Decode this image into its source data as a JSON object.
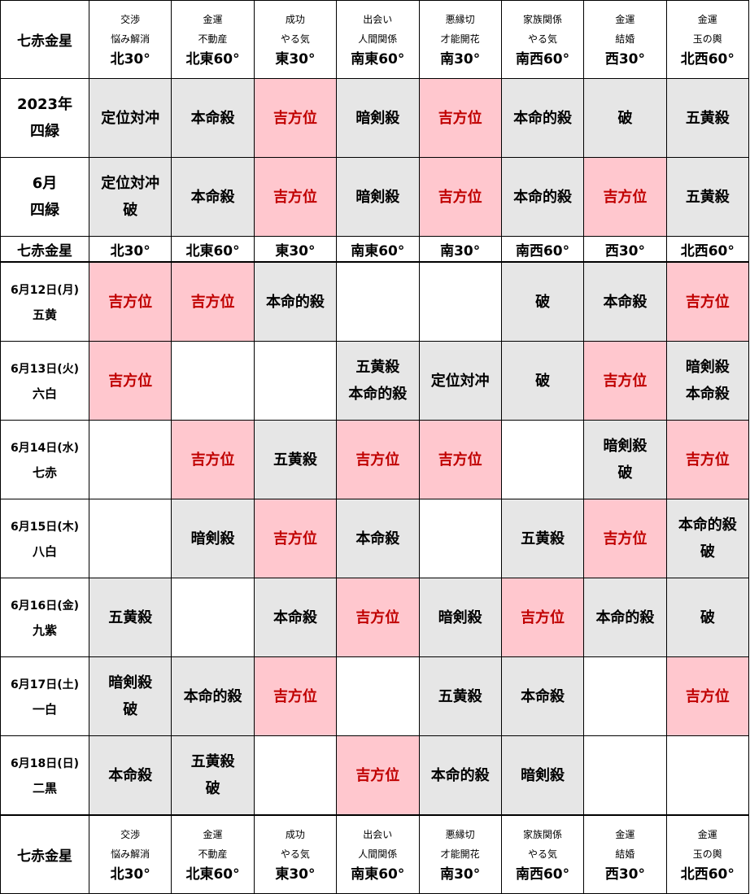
{
  "star_label": "七赤金星",
  "colors": {
    "gray": "#e6e6e6",
    "pink": "#ffc7ce",
    "lucky_text": "#c00000"
  },
  "directions": [
    {
      "lines": [
        "交渉",
        "悩み解消"
      ],
      "dir": "北30°"
    },
    {
      "lines": [
        "金運",
        "不動産"
      ],
      "dir": "北東60°"
    },
    {
      "lines": [
        "成功",
        "やる気"
      ],
      "dir": "東30°"
    },
    {
      "lines": [
        "出会い",
        "人間関係"
      ],
      "dir": "南東60°"
    },
    {
      "lines": [
        "悪縁切",
        "才能開花"
      ],
      "dir": "南30°"
    },
    {
      "lines": [
        "家族関係",
        "やる気"
      ],
      "dir": "南西60°"
    },
    {
      "lines": [
        "金運",
        "結婚"
      ],
      "dir": "西30°"
    },
    {
      "lines": [
        "金運",
        "玉の輿"
      ],
      "dir": "北西60°"
    }
  ],
  "period_rows": [
    {
      "label": [
        "2023年",
        "四緑"
      ],
      "cells": [
        {
          "bg": "gray",
          "text": [
            "定位対冲"
          ]
        },
        {
          "bg": "gray",
          "text": [
            "本命殺"
          ]
        },
        {
          "bg": "pink",
          "text": [
            "吉方位"
          ]
        },
        {
          "bg": "gray",
          "text": [
            "暗剣殺"
          ]
        },
        {
          "bg": "pink",
          "text": [
            "吉方位"
          ]
        },
        {
          "bg": "gray",
          "text": [
            "本命的殺"
          ]
        },
        {
          "bg": "gray",
          "text": [
            "破"
          ]
        },
        {
          "bg": "gray",
          "text": [
            "五黄殺"
          ]
        }
      ]
    },
    {
      "label": [
        "6月",
        "四緑"
      ],
      "cells": [
        {
          "bg": "gray",
          "text": [
            "定位対冲",
            "破"
          ]
        },
        {
          "bg": "gray",
          "text": [
            "本命殺"
          ]
        },
        {
          "bg": "pink",
          "text": [
            "吉方位"
          ]
        },
        {
          "bg": "gray",
          "text": [
            "暗剣殺"
          ]
        },
        {
          "bg": "pink",
          "text": [
            "吉方位"
          ]
        },
        {
          "bg": "gray",
          "text": [
            "本命的殺"
          ]
        },
        {
          "bg": "pink",
          "text": [
            "吉方位"
          ]
        },
        {
          "bg": "gray",
          "text": [
            "五黄殺"
          ]
        }
      ]
    }
  ],
  "day_rows": [
    {
      "date": "6月12日(月)",
      "star": "五黄",
      "cells": [
        {
          "bg": "pink",
          "text": [
            "吉方位"
          ]
        },
        {
          "bg": "pink",
          "text": [
            "吉方位"
          ]
        },
        {
          "bg": "gray",
          "text": [
            "本命的殺"
          ]
        },
        {
          "bg": "white",
          "text": []
        },
        {
          "bg": "white",
          "text": []
        },
        {
          "bg": "gray",
          "text": [
            "破"
          ]
        },
        {
          "bg": "gray",
          "text": [
            "本命殺"
          ]
        },
        {
          "bg": "pink",
          "text": [
            "吉方位"
          ]
        }
      ]
    },
    {
      "date": "6月13日(火)",
      "star": "六白",
      "cells": [
        {
          "bg": "pink",
          "text": [
            "吉方位"
          ]
        },
        {
          "bg": "white",
          "text": []
        },
        {
          "bg": "white",
          "text": []
        },
        {
          "bg": "gray",
          "text": [
            "五黄殺",
            "本命的殺"
          ]
        },
        {
          "bg": "gray",
          "text": [
            "定位対冲"
          ]
        },
        {
          "bg": "gray",
          "text": [
            "破"
          ]
        },
        {
          "bg": "pink",
          "text": [
            "吉方位"
          ]
        },
        {
          "bg": "gray",
          "text": [
            "暗剣殺",
            "本命殺"
          ]
        }
      ]
    },
    {
      "date": "6月14日(水)",
      "star": "七赤",
      "cells": [
        {
          "bg": "white",
          "text": []
        },
        {
          "bg": "pink",
          "text": [
            "吉方位"
          ]
        },
        {
          "bg": "gray",
          "text": [
            "五黄殺"
          ]
        },
        {
          "bg": "pink",
          "text": [
            "吉方位"
          ]
        },
        {
          "bg": "pink",
          "text": [
            "吉方位"
          ]
        },
        {
          "bg": "white",
          "text": []
        },
        {
          "bg": "gray",
          "text": [
            "暗剣殺",
            "破"
          ]
        },
        {
          "bg": "pink",
          "text": [
            "吉方位"
          ]
        }
      ]
    },
    {
      "date": "6月15日(木)",
      "star": "八白",
      "cells": [
        {
          "bg": "white",
          "text": []
        },
        {
          "bg": "gray",
          "text": [
            "暗剣殺"
          ]
        },
        {
          "bg": "pink",
          "text": [
            "吉方位"
          ]
        },
        {
          "bg": "gray",
          "text": [
            "本命殺"
          ]
        },
        {
          "bg": "white",
          "text": []
        },
        {
          "bg": "gray",
          "text": [
            "五黄殺"
          ]
        },
        {
          "bg": "pink",
          "text": [
            "吉方位"
          ]
        },
        {
          "bg": "gray",
          "text": [
            "本命的殺",
            "破"
          ]
        }
      ]
    },
    {
      "date": "6月16日(金)",
      "star": "九紫",
      "cells": [
        {
          "bg": "gray",
          "text": [
            "五黄殺"
          ]
        },
        {
          "bg": "white",
          "text": []
        },
        {
          "bg": "gray",
          "text": [
            "本命殺"
          ]
        },
        {
          "bg": "pink",
          "text": [
            "吉方位"
          ]
        },
        {
          "bg": "gray",
          "text": [
            "暗剣殺"
          ]
        },
        {
          "bg": "pink",
          "text": [
            "吉方位"
          ]
        },
        {
          "bg": "gray",
          "text": [
            "本命的殺"
          ]
        },
        {
          "bg": "gray",
          "text": [
            "破"
          ]
        }
      ]
    },
    {
      "date": "6月17日(土)",
      "star": "一白",
      "cells": [
        {
          "bg": "gray",
          "text": [
            "暗剣殺",
            "破"
          ]
        },
        {
          "bg": "gray",
          "text": [
            "本命的殺"
          ]
        },
        {
          "bg": "pink",
          "text": [
            "吉方位"
          ]
        },
        {
          "bg": "white",
          "text": []
        },
        {
          "bg": "gray",
          "text": [
            "五黄殺"
          ]
        },
        {
          "bg": "gray",
          "text": [
            "本命殺"
          ]
        },
        {
          "bg": "white",
          "text": []
        },
        {
          "bg": "pink",
          "text": [
            "吉方位"
          ]
        }
      ]
    },
    {
      "date": "6月18日(日)",
      "star": "二黒",
      "cells": [
        {
          "bg": "gray",
          "text": [
            "本命殺"
          ]
        },
        {
          "bg": "gray",
          "text": [
            "五黄殺",
            "破"
          ]
        },
        {
          "bg": "white",
          "text": []
        },
        {
          "bg": "pink",
          "text": [
            "吉方位"
          ]
        },
        {
          "bg": "gray",
          "text": [
            "本命的殺"
          ]
        },
        {
          "bg": "gray",
          "text": [
            "暗剣殺"
          ]
        },
        {
          "bg": "white",
          "text": []
        },
        {
          "bg": "white",
          "text": []
        }
      ]
    }
  ]
}
